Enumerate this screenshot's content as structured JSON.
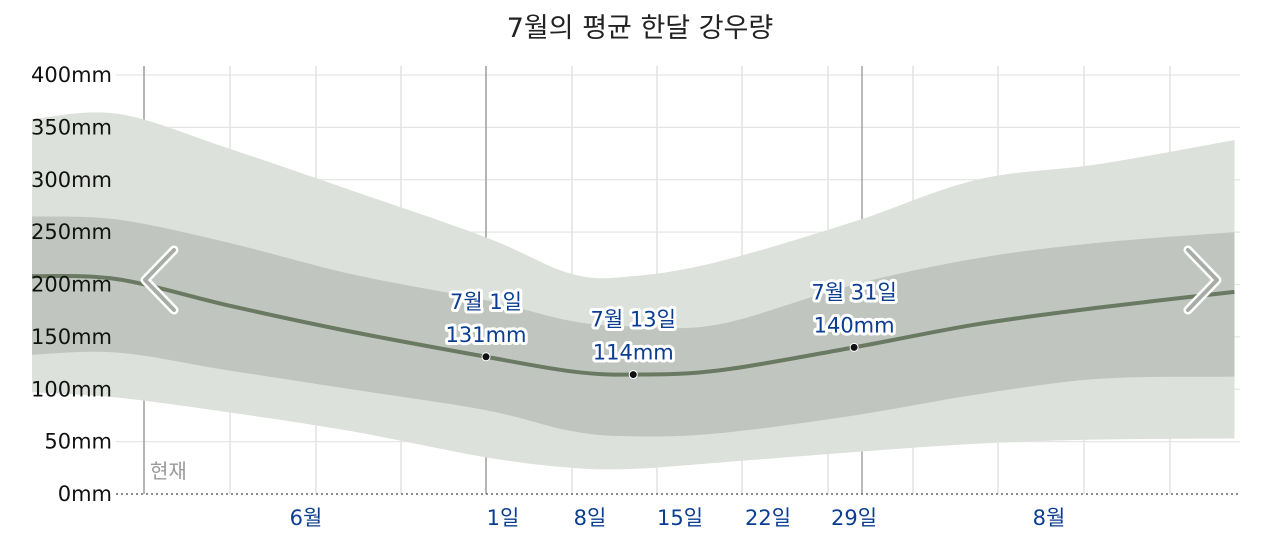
{
  "chart_data": {
    "type": "area",
    "title": "7월의 평균 한달 강우량",
    "y_ticks": [
      "400mm",
      "350mm",
      "300mm",
      "250mm",
      "200mm",
      "150mm",
      "100mm",
      "50mm",
      "0mm"
    ],
    "ylim": [
      0,
      400
    ],
    "y_unit": "mm",
    "x_ticks": [
      "6월",
      "1일",
      "8일",
      "15일",
      "22일",
      "29일",
      "8월"
    ],
    "now_label": "현재",
    "grid": true,
    "series": [
      {
        "x": [
          "5/25",
          "6/1",
          "6/10",
          "6/20",
          "7/1",
          "7/8",
          "7/13",
          "7/20",
          "7/31",
          "8/10",
          "8/20",
          "8/31"
        ],
        "values": [
          208,
          205,
          180,
          155,
          131,
          117,
          114,
          118,
          140,
          162,
          178,
          193
        ]
      }
    ],
    "band_inner": {
      "upper": [
        265,
        262,
        240,
        210,
        185,
        165,
        160,
        162,
        200,
        225,
        240,
        250
      ],
      "lower": [
        133,
        135,
        118,
        100,
        80,
        60,
        55,
        58,
        75,
        95,
        110,
        112
      ]
    },
    "band_outer": {
      "upper": [
        358,
        363,
        330,
        290,
        245,
        210,
        208,
        222,
        260,
        300,
        315,
        338
      ],
      "lower": [
        97,
        92,
        78,
        60,
        35,
        25,
        24,
        30,
        40,
        48,
        52,
        53
      ]
    },
    "annotations": [
      {
        "line1": "7월 1일",
        "line2": "131mm",
        "x": "7/1",
        "value": 131
      },
      {
        "line1": "7월 13일",
        "line2": "114mm",
        "x": "7/13",
        "value": 114
      },
      {
        "line1": "7월 31일",
        "line2": "140mm",
        "x": "7/31",
        "value": 140
      }
    ],
    "colors": {
      "outer_band": "#dde1dc",
      "inner_band": "#c0c6bf",
      "median_line": "#6a7a62",
      "x_label": "#0b3d91",
      "annotation": "#0b3d91"
    }
  },
  "nav": {
    "prev_icon": "chevron-left-icon",
    "next_icon": "chevron-right-icon"
  }
}
